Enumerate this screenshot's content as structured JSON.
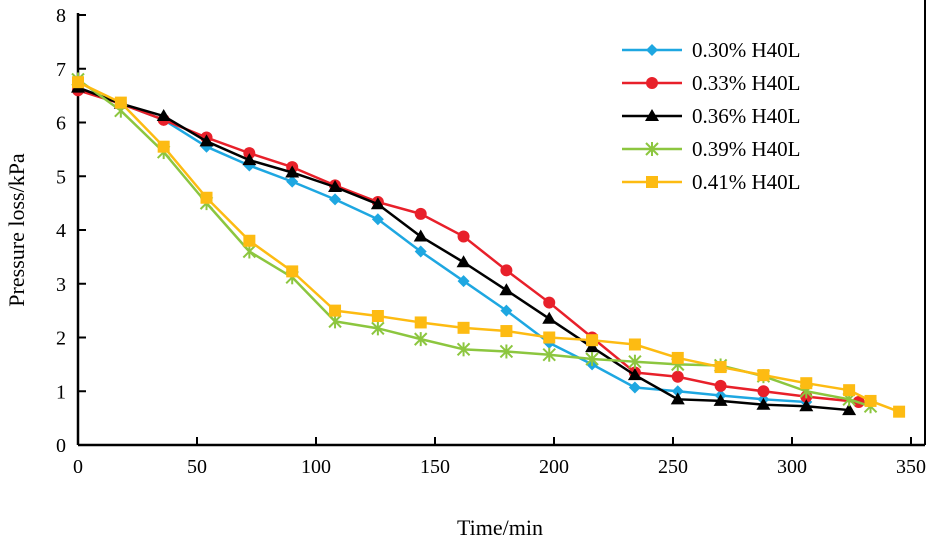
{
  "chart_data": {
    "type": "line",
    "title": "",
    "xlabel": "Time/min",
    "ylabel": "Pressure loss/kPa",
    "xlim": [
      0,
      350
    ],
    "ylim": [
      0,
      8
    ],
    "xticks": [
      0,
      50,
      100,
      150,
      200,
      250,
      300,
      350
    ],
    "yticks": [
      0,
      1,
      2,
      3,
      4,
      5,
      6,
      7,
      8
    ],
    "grid": false,
    "legend_position": "top-right",
    "series": [
      {
        "name": "0.30% H40L",
        "color": "#1ea7e1",
        "marker": "diamond",
        "x": [
          0,
          18,
          36,
          54,
          72,
          90,
          108,
          126,
          144,
          162,
          180,
          198,
          216,
          234,
          252,
          270,
          288,
          306
        ],
        "y": [
          6.65,
          6.35,
          6.05,
          5.55,
          5.2,
          4.9,
          4.57,
          4.2,
          3.6,
          3.05,
          2.5,
          1.9,
          1.5,
          1.07,
          1.0,
          0.92,
          0.85,
          0.8
        ]
      },
      {
        "name": "0.33% H40L",
        "color": "#e8202a",
        "marker": "circle",
        "x": [
          0,
          18,
          36,
          54,
          72,
          90,
          108,
          126,
          144,
          162,
          180,
          198,
          216,
          234,
          252,
          270,
          288,
          306,
          328
        ],
        "y": [
          6.6,
          6.35,
          6.05,
          5.72,
          5.43,
          5.17,
          4.83,
          4.52,
          4.3,
          3.88,
          3.25,
          2.65,
          2.0,
          1.35,
          1.27,
          1.1,
          1.0,
          0.9,
          0.8
        ]
      },
      {
        "name": "0.36% H40L",
        "color": "#000000",
        "marker": "triangle",
        "x": [
          0,
          18,
          36,
          54,
          72,
          90,
          108,
          126,
          144,
          162,
          180,
          198,
          216,
          234,
          252,
          270,
          288,
          306,
          324
        ],
        "y": [
          6.65,
          6.35,
          6.12,
          5.65,
          5.3,
          5.07,
          4.8,
          4.48,
          3.88,
          3.4,
          2.88,
          2.35,
          1.82,
          1.3,
          0.85,
          0.82,
          0.75,
          0.72,
          0.65
        ]
      },
      {
        "name": "0.39% H40L",
        "color": "#8cc63f",
        "marker": "star",
        "x": [
          0,
          18,
          36,
          54,
          72,
          90,
          108,
          126,
          144,
          162,
          180,
          198,
          216,
          234,
          252,
          270,
          288,
          306,
          324,
          333
        ],
        "y": [
          6.8,
          6.22,
          5.45,
          4.5,
          3.6,
          3.12,
          2.3,
          2.17,
          1.97,
          1.78,
          1.74,
          1.68,
          1.6,
          1.55,
          1.5,
          1.48,
          1.28,
          1.0,
          0.85,
          0.72
        ]
      },
      {
        "name": "0.41% H40L",
        "color": "#fdbb12",
        "marker": "square",
        "x": [
          0,
          18,
          36,
          54,
          72,
          90,
          108,
          126,
          144,
          162,
          180,
          198,
          216,
          234,
          252,
          270,
          288,
          306,
          324,
          333,
          345
        ],
        "y": [
          6.75,
          6.37,
          5.55,
          4.6,
          3.8,
          3.23,
          2.5,
          2.4,
          2.28,
          2.18,
          2.12,
          2.0,
          1.95,
          1.87,
          1.62,
          1.45,
          1.3,
          1.15,
          1.02,
          0.82,
          0.62
        ]
      }
    ]
  }
}
